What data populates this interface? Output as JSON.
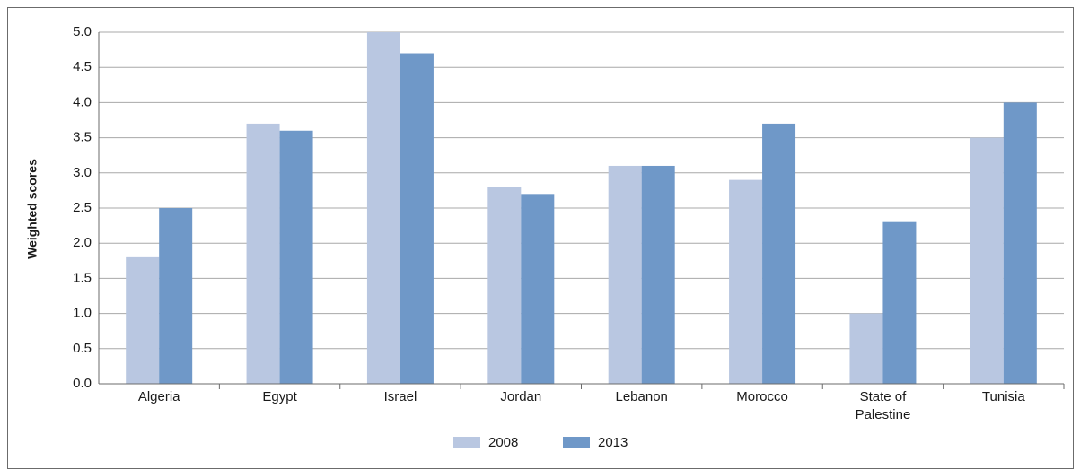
{
  "chart_data": {
    "type": "bar",
    "title": "",
    "xlabel": "",
    "ylabel": "Weighted scores",
    "ylim": [
      0,
      5
    ],
    "yticks": [
      "0.0",
      "0.5",
      "1.0",
      "1.5",
      "2.0",
      "2.5",
      "3.0",
      "3.5",
      "4.0",
      "4.5",
      "5.0"
    ],
    "grid": true,
    "legend_position": "bottom",
    "categories": [
      "Algeria",
      "Egypt",
      "Israel",
      "Jordan",
      "Lebanon",
      "Morocco",
      "State of Palestine",
      "Tunisia"
    ],
    "category_lines": [
      [
        "Algeria"
      ],
      [
        "Egypt"
      ],
      [
        "Israel"
      ],
      [
        "Jordan"
      ],
      [
        "Lebanon"
      ],
      [
        "Morocco"
      ],
      [
        "State of",
        "Palestine"
      ],
      [
        "Tunisia"
      ]
    ],
    "series": [
      {
        "name": "2008",
        "color": "#b9c7e1",
        "values": [
          1.8,
          3.7,
          5.0,
          2.8,
          3.1,
          2.9,
          1.0,
          3.5
        ]
      },
      {
        "name": "2013",
        "color": "#6f98c8",
        "values": [
          2.5,
          3.6,
          4.7,
          2.7,
          3.1,
          3.7,
          2.3,
          4.0
        ]
      }
    ]
  }
}
